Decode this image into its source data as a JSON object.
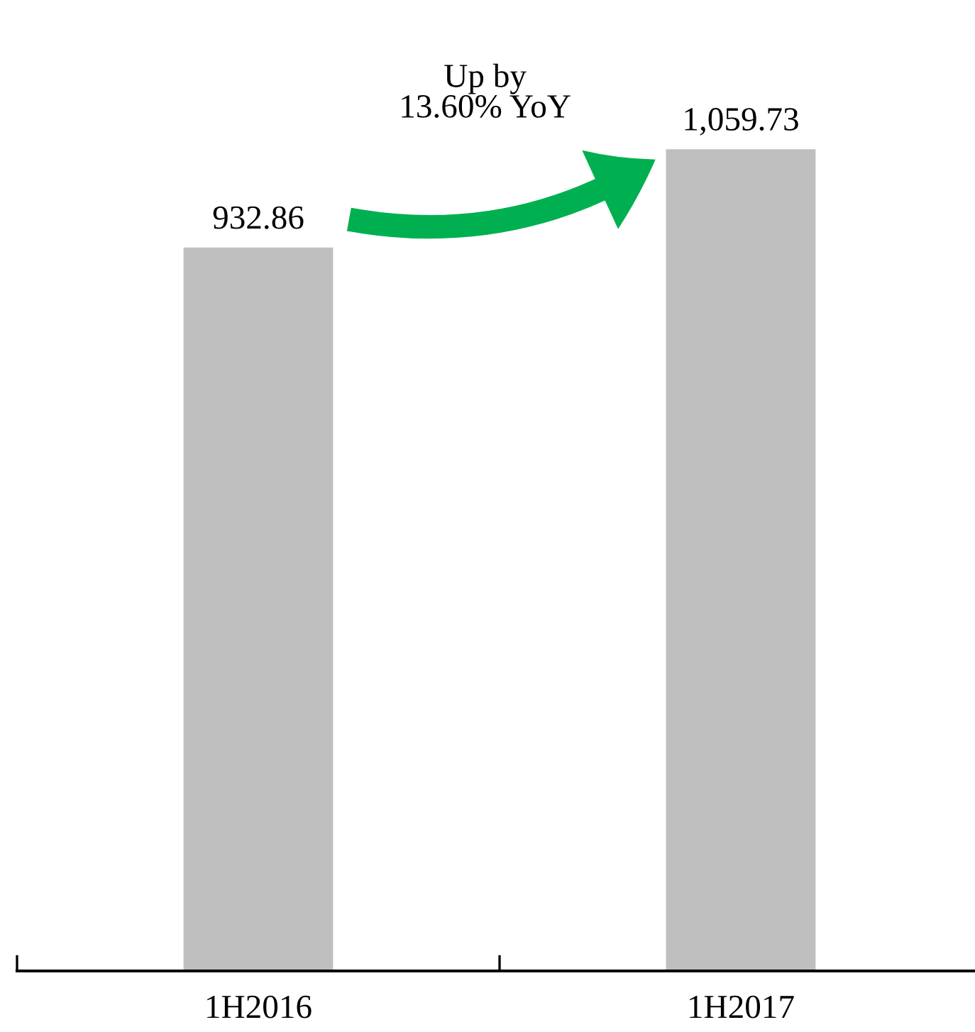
{
  "chart_data": {
    "type": "bar",
    "categories": [
      "1H2016",
      "1H2017"
    ],
    "values": [
      932.86,
      1059.73
    ],
    "color": "#bfbfbf",
    "data_labels": true,
    "value_labels": [
      "932.86",
      "1,059.73"
    ],
    "tick_labels": "x",
    "grid": false,
    "annotations": [
      "Up by\n13.60% YoY"
    ]
  }
}
